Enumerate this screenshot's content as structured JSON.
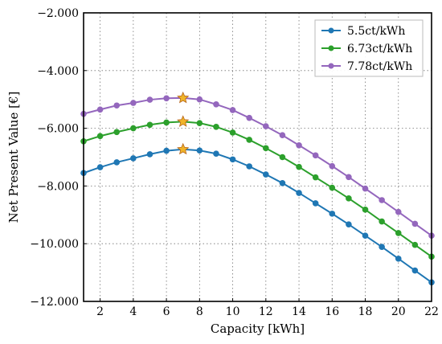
{
  "chart_data": {
    "type": "line",
    "title": "",
    "xlabel": "Capacity [kWh]",
    "ylabel": "Net Present Value [€]",
    "xlim": [
      1,
      22
    ],
    "ylim": [
      -12000,
      -2000
    ],
    "x_ticks": [
      2,
      4,
      6,
      8,
      10,
      12,
      14,
      16,
      18,
      20,
      22
    ],
    "x_tick_labels": [
      "2",
      "4",
      "6",
      "8",
      "10",
      "12",
      "14",
      "16",
      "18",
      "20",
      "22"
    ],
    "y_ticks": [
      -12000,
      -10000,
      -8000,
      -6000,
      -4000,
      -2000
    ],
    "y_tick_labels": [
      "−12.000",
      "−10.000",
      "−8.000",
      "−6.000",
      "−4.000",
      "−2.000"
    ],
    "grid": true,
    "legend_position": "top-right",
    "x": [
      1,
      2,
      3,
      4,
      5,
      6,
      7,
      8,
      9,
      10,
      11,
      12,
      13,
      14,
      15,
      16,
      17,
      18,
      19,
      20,
      21,
      22
    ],
    "series": [
      {
        "name": "5.5ct/kWh",
        "color": "#1f77b4",
        "values": [
          -7550,
          -7350,
          -7180,
          -7040,
          -6900,
          -6780,
          -6730,
          -6770,
          -6880,
          -7080,
          -7320,
          -7600,
          -7900,
          -8240,
          -8600,
          -8960,
          -9330,
          -9720,
          -10110,
          -10520,
          -10930,
          -11340
        ],
        "optimum": {
          "x": 7,
          "y": -6730
        }
      },
      {
        "name": "6.73ct/kWh",
        "color": "#2ca02c",
        "values": [
          -6450,
          -6270,
          -6130,
          -6000,
          -5880,
          -5800,
          -5770,
          -5820,
          -5950,
          -6150,
          -6400,
          -6690,
          -7000,
          -7340,
          -7700,
          -8060,
          -8430,
          -8820,
          -9230,
          -9630,
          -10040,
          -10450
        ],
        "optimum": {
          "x": 7,
          "y": -5770
        }
      },
      {
        "name": "7.78ct/kWh",
        "color": "#9467bd",
        "values": [
          -5500,
          -5350,
          -5210,
          -5120,
          -5010,
          -4960,
          -4950,
          -5000,
          -5170,
          -5370,
          -5640,
          -5930,
          -6240,
          -6590,
          -6940,
          -7310,
          -7690,
          -8090,
          -8490,
          -8900,
          -9310,
          -9720
        ],
        "optimum": {
          "x": 7,
          "y": -4950
        }
      }
    ],
    "optimum_marker_color": "#f0b429"
  }
}
